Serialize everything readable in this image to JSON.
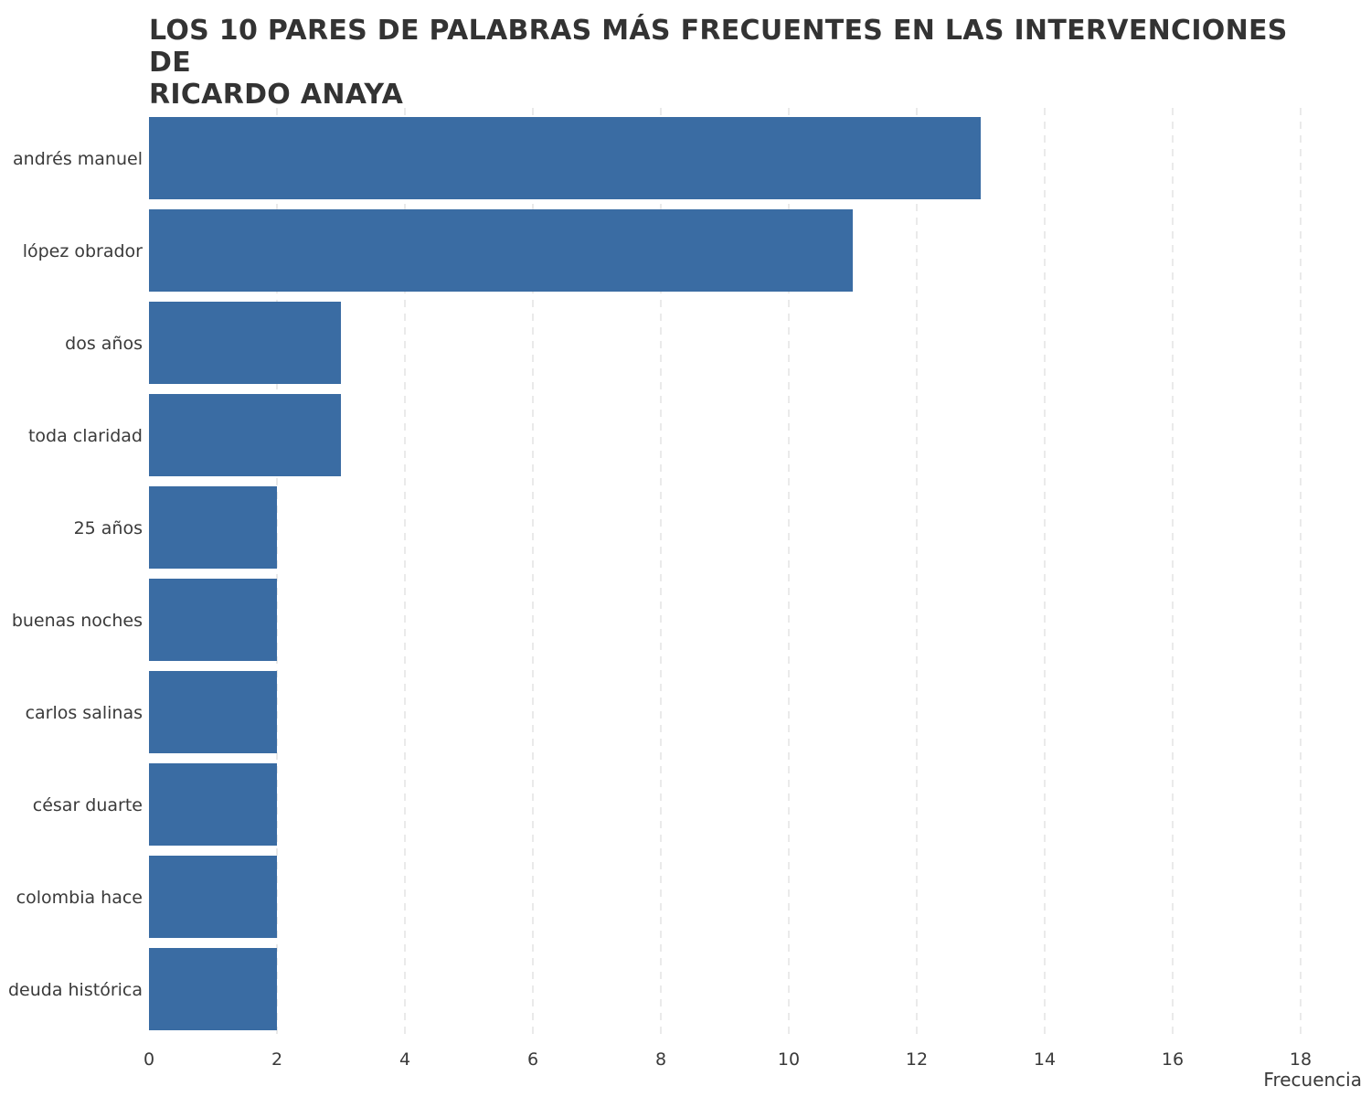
{
  "chart_data": {
    "type": "bar",
    "orientation": "horizontal",
    "title": "LOS 10 PARES DE PALABRAS MÁS FRECUENTES EN LAS INTERVENCIONES DE\n RICARDO ANAYA",
    "xlabel": "Frecuencia",
    "ylabel": "",
    "categories": [
      "andrés manuel",
      "lópez obrador",
      "dos años",
      "toda claridad",
      "25 años",
      "buenas noches",
      "carlos salinas",
      "césar duarte",
      "colombia hace",
      "deuda histórica"
    ],
    "values": [
      13,
      11,
      3,
      3,
      2,
      2,
      2,
      2,
      2,
      2
    ],
    "xlim": [
      0,
      18
    ],
    "xticks": [
      0,
      2,
      4,
      6,
      8,
      10,
      12,
      14,
      16,
      18
    ],
    "bar_color": "#3a6ca3",
    "grid": true,
    "legend": "none"
  }
}
